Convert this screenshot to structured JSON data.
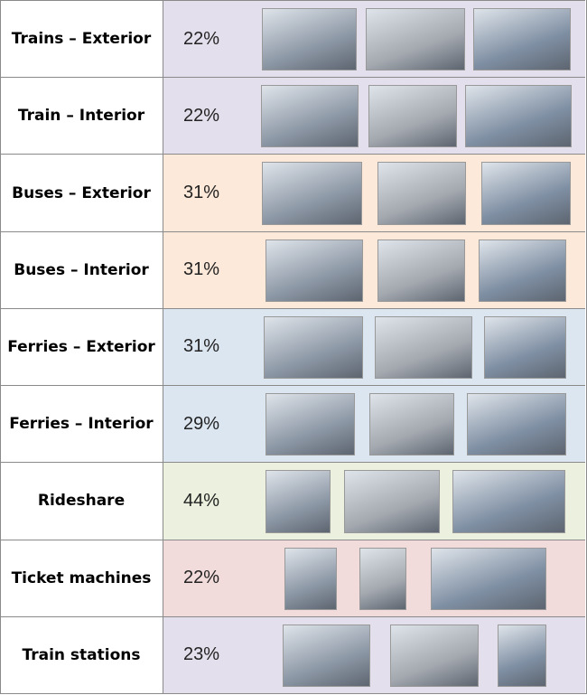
{
  "table": {
    "rows": [
      [
        "Trains – Exterior",
        "22%"
      ],
      [
        "Train – Interior",
        "22%"
      ],
      [
        "Buses – Exterior",
        "31%"
      ],
      [
        "Buses – Interior",
        "31%"
      ],
      [
        "Ferries – Exterior",
        "31%"
      ],
      [
        "Ferries – Interior",
        "29%"
      ],
      [
        "Rideshare",
        "44%"
      ],
      [
        "Ticket machines",
        "22%"
      ],
      [
        "Train stations",
        "23%"
      ]
    ]
  }
}
